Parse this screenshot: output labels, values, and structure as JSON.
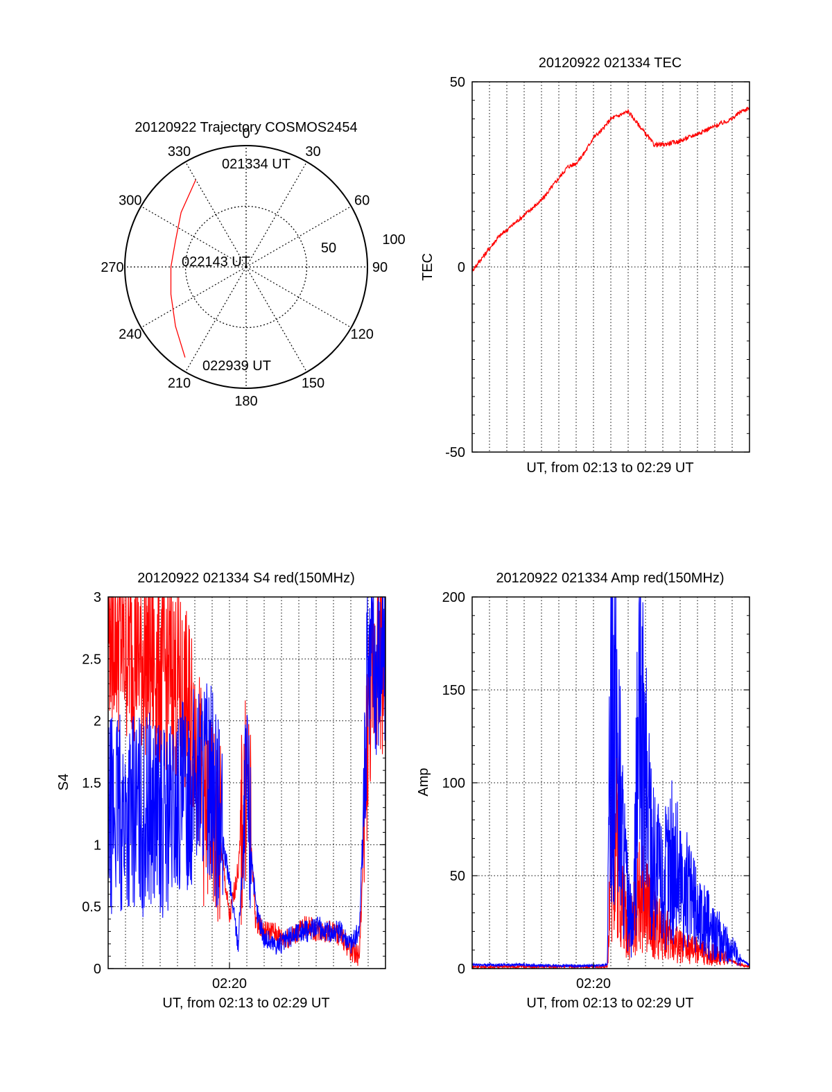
{
  "colors": {
    "red": "#ff0000",
    "blue": "#0000ff",
    "axis": "#000000",
    "grid": "#000000"
  },
  "chart_data": [
    {
      "type": "polar",
      "title": "20120922 Trajectory COSMOS2454",
      "angle_labels": [
        "0",
        "30",
        "60",
        "90",
        "120",
        "150",
        "180",
        "210",
        "240",
        "270",
        "300",
        "330"
      ],
      "radius_labels": [
        "50",
        "100"
      ],
      "rlim": [
        0,
        100
      ],
      "annotations": [
        "021334 UT",
        "022143 UT",
        "022939 UT"
      ],
      "series": [
        {
          "color": "red",
          "points": [
            [
              330,
              83
            ],
            [
              310,
              70
            ],
            [
              290,
              62
            ],
            [
              270,
              62
            ],
            [
              250,
              66
            ],
            [
              230,
              76
            ],
            [
              214,
              90
            ]
          ]
        }
      ]
    },
    {
      "type": "line",
      "title": "20120922 021334 TEC",
      "ylabel": "TEC",
      "xlabel": "UT, from 02:13 to 02:29 UT",
      "ylim": [
        -50,
        50
      ],
      "yticks": [
        "-50",
        "0",
        "50"
      ],
      "xlim_minutes": [
        0,
        16
      ],
      "grid": true,
      "series": [
        {
          "color": "red",
          "x": [
            0,
            0.5,
            1,
            1.5,
            2,
            2.5,
            3,
            3.5,
            4,
            4.5,
            5,
            5.5,
            6,
            6.5,
            7,
            7.5,
            8,
            8.5,
            9,
            9.5,
            10,
            10.5,
            11,
            11.5,
            12,
            12.5,
            13,
            13.5,
            14,
            14.5,
            15,
            15.5,
            16
          ],
          "y": [
            -1,
            2,
            5,
            8,
            10,
            12,
            14,
            16,
            18,
            21,
            24,
            27,
            28,
            31,
            35,
            37,
            40,
            41,
            42,
            39,
            36,
            33,
            33,
            33.5,
            34,
            35,
            36,
            37,
            38,
            39,
            40,
            42,
            43
          ]
        }
      ]
    },
    {
      "type": "line",
      "title": "20120922 021334 S4 red(150MHz)",
      "ylabel": "S4",
      "xlabel": "UT, from 02:13 to 02:29 UT",
      "xtick_label": "02:20",
      "ylim": [
        0,
        3
      ],
      "yticks": [
        "0",
        "0.5",
        "1",
        "1.5",
        "2",
        "2.5",
        "3"
      ],
      "xlim_minutes": [
        0,
        16
      ],
      "grid": true,
      "series": [
        {
          "color": "red",
          "x": [
            0,
            0.5,
            1,
            1.5,
            2,
            2.5,
            3,
            3.5,
            4,
            4.5,
            5,
            5.5,
            6,
            6.5,
            7,
            7.5,
            8,
            8.5,
            9,
            9.5,
            10,
            10.5,
            11,
            11.5,
            12,
            12.5,
            13,
            13.5,
            14,
            14.5,
            15,
            15.5,
            16
          ],
          "y": [
            2.8,
            2.7,
            2.6,
            2.6,
            2.5,
            2.5,
            2.4,
            2.4,
            2.3,
            2.1,
            2.0,
            1.3,
            1.2,
            1.0,
            0.4,
            0.8,
            1.6,
            0.4,
            0.3,
            0.3,
            0.25,
            0.25,
            0.3,
            0.35,
            0.3,
            0.3,
            0.3,
            0.25,
            0.15,
            0.1,
            2.0,
            2.6,
            2.4
          ]
        },
        {
          "color": "blue",
          "x": [
            0,
            0.5,
            1,
            1.5,
            2,
            2.5,
            3,
            3.5,
            4,
            4.5,
            5,
            5.5,
            6,
            6.5,
            7,
            7.5,
            8,
            8.5,
            9,
            9.5,
            10,
            10.5,
            11,
            11.5,
            12,
            12.5,
            13,
            13.5,
            14,
            14.5,
            15,
            15.5,
            16
          ],
          "y": [
            1.2,
            1.3,
            1.2,
            1.3,
            1.2,
            1.3,
            1.2,
            1.2,
            1.3,
            1.4,
            1.5,
            1.6,
            1.5,
            1.1,
            0.7,
            0.2,
            1.5,
            0.5,
            0.25,
            0.2,
            0.2,
            0.25,
            0.3,
            0.3,
            0.35,
            0.3,
            0.3,
            0.3,
            0.2,
            0.3,
            2.6,
            2.5,
            2.5
          ]
        }
      ]
    },
    {
      "type": "line",
      "title": "20120922 021334 Amp red(150MHz)",
      "ylabel": "Amp",
      "xlabel": "UT, from 02:13 to 02:29 UT",
      "xtick_label": "02:20",
      "ylim": [
        0,
        200
      ],
      "yticks": [
        "0",
        "50",
        "100",
        "150",
        "200"
      ],
      "xlim_minutes": [
        0,
        16
      ],
      "grid": true,
      "series": [
        {
          "color": "red",
          "x": [
            0,
            1,
            2,
            3,
            4,
            5,
            6,
            7,
            7.8,
            8,
            8.3,
            8.6,
            9,
            9.3,
            9.6,
            10,
            10.5,
            11,
            11.5,
            12,
            12.5,
            13,
            13.5,
            14,
            14.5,
            15,
            15.5,
            16
          ],
          "y": [
            1,
            1,
            1,
            1,
            1,
            1,
            1,
            1,
            1,
            60,
            80,
            40,
            20,
            25,
            40,
            35,
            25,
            20,
            15,
            12,
            10,
            10,
            8,
            8,
            6,
            4,
            2,
            1
          ]
        },
        {
          "color": "blue",
          "x": [
            0,
            1,
            2,
            3,
            4,
            5,
            6,
            7,
            7.8,
            8,
            8.3,
            8.6,
            9,
            9.3,
            9.6,
            10,
            10.5,
            11,
            11.5,
            12,
            12.5,
            13,
            13.5,
            14,
            14.5,
            15,
            15.5,
            16
          ],
          "y": [
            2,
            2,
            2,
            2,
            1.5,
            1.5,
            1.5,
            1.5,
            2,
            160,
            140,
            80,
            30,
            20,
            130,
            100,
            60,
            45,
            60,
            50,
            40,
            30,
            25,
            20,
            15,
            10,
            5,
            2
          ]
        }
      ]
    }
  ]
}
